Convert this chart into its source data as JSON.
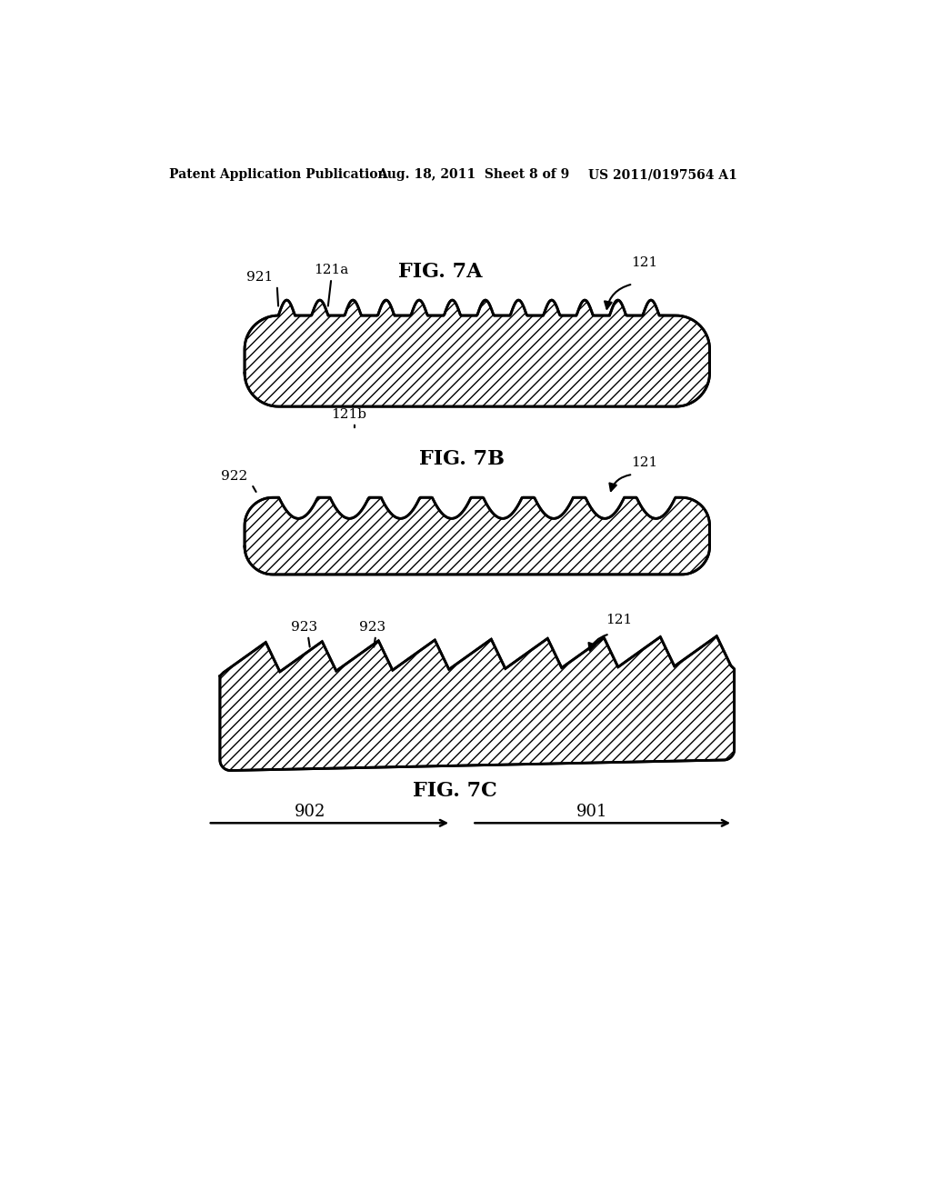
{
  "bg_color": "#ffffff",
  "line_color": "#000000",
  "header_left": "Patent Application Publication",
  "header_mid": "Aug. 18, 2011  Sheet 8 of 9",
  "header_right": "US 2011/0197564 A1",
  "fig7a_label": "FIG. 7A",
  "fig7b_label": "FIG. 7B",
  "fig7c_label": "FIG. 7C",
  "label_921": "921",
  "label_121a": "121a",
  "label_121": "121",
  "label_121b": "121b",
  "label_922": "922",
  "label_923a": "923",
  "label_923b": "923",
  "label_902": "902",
  "label_901": "901"
}
